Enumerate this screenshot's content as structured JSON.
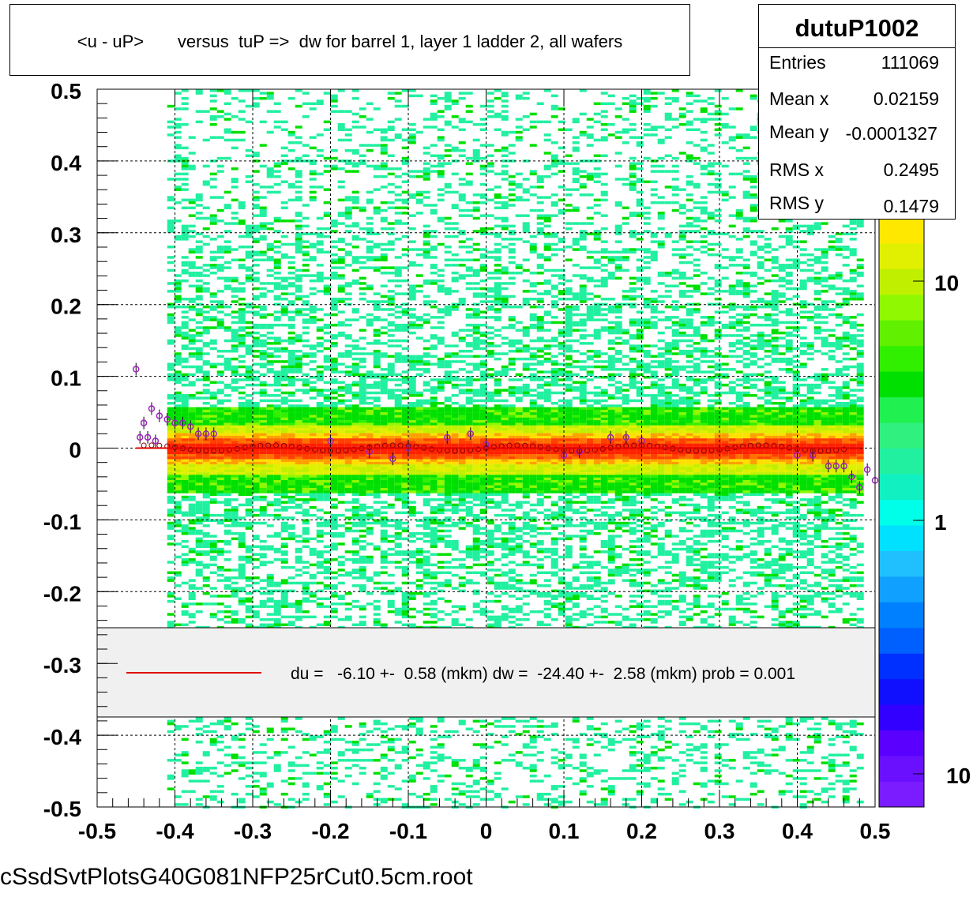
{
  "title": "<u - uP>       versus  tuP =>  dw for barrel 1, layer 1 ladder 2, all wafers",
  "stats": {
    "name": "dutuP1002",
    "rows": [
      {
        "label": "Entries",
        "value": "111069"
      },
      {
        "label": "Mean x",
        "value": "0.02159"
      },
      {
        "label": "Mean y",
        "value": "-0.0001327"
      },
      {
        "label": "RMS x",
        "value": "0.2495"
      },
      {
        "label": "RMS y",
        "value": "0.1479"
      }
    ]
  },
  "legend": {
    "text": "du =   -6.10 +-  0.58 (mkm) dw =  -24.40 +-  2.58 (mkm) prob = 0.001",
    "line_color": "#e00000"
  },
  "footer": "cSsdSvtPlotsG40G081NFP25rCut0.5cm.root",
  "colors": {
    "low": "#20f0a0",
    "mid": "#00e000",
    "high": "#ffe000",
    "peak": "#ff2000",
    "profile_marker": "#a020c0",
    "fit_line": "#e00000",
    "legend_bg": "#f0f0f0"
  },
  "palette": [
    "#7a1cff",
    "#6a10ff",
    "#5a00ff",
    "#3200ff",
    "#1010ff",
    "#0030ff",
    "#0060ff",
    "#0080ff",
    "#10a0ff",
    "#20c0ff",
    "#00e0ff",
    "#00ffe8",
    "#10f0c0",
    "#20f0a0",
    "#30f080",
    "#20f050",
    "#00e000",
    "#30f000",
    "#60f000",
    "#90f800",
    "#c0f000",
    "#e0f000",
    "#ffe800",
    "#ffc000",
    "#ffa000",
    "#ff7000",
    "#ff4000",
    "#ff2000"
  ],
  "colz_labels": [
    "10",
    "1",
    "10"
  ],
  "chart_data": {
    "type": "heatmap",
    "title": "<u - uP>       versus  tuP =>  dw for barrel 1, layer 1 ladder 2, all wafers",
    "xlim": [
      -0.5,
      0.5
    ],
    "ylim": [
      -0.5,
      0.5
    ],
    "x_ticks": [
      "-0.5",
      "-0.4",
      "-0.3",
      "-0.2",
      "-0.1",
      "0",
      "0.1",
      "0.2",
      "0.3",
      "0.4",
      "0.5"
    ],
    "y_ticks": [
      "0.5",
      "0.4",
      "0.3",
      "0.2",
      "0.1",
      "0",
      "-0.1",
      "-0.2",
      "-0.3",
      "-0.4",
      "-0.5"
    ],
    "grid": true,
    "heatmap_x_range": [
      -0.41,
      0.48
    ],
    "band_center_y": 0.0,
    "profile": {
      "x": [
        -0.45,
        -0.445,
        -0.44,
        -0.435,
        -0.43,
        -0.425,
        -0.42,
        -0.41,
        -0.4,
        -0.39,
        -0.38,
        -0.37,
        -0.36,
        -0.35,
        -0.2,
        -0.15,
        -0.12,
        -0.1,
        -0.05,
        -0.02,
        0.0,
        0.1,
        0.12,
        0.16,
        0.18,
        0.2,
        0.4,
        0.42,
        0.44,
        0.45,
        0.46,
        0.47,
        0.48,
        0.49,
        0.5
      ],
      "y": [
        0.11,
        0.015,
        0.035,
        0.015,
        0.055,
        0.01,
        0.045,
        0.04,
        0.035,
        0.035,
        0.03,
        0.02,
        0.02,
        0.02,
        0.01,
        -0.005,
        -0.015,
        0.0,
        0.015,
        0.02,
        0.005,
        -0.01,
        -0.005,
        0.015,
        0.015,
        0.01,
        -0.01,
        -0.01,
        -0.025,
        -0.025,
        -0.025,
        -0.04,
        -0.055,
        -0.03,
        -0.045
      ]
    },
    "fit_line": {
      "x": [
        -0.45,
        0.48
      ],
      "y": [
        0.0,
        0.0
      ]
    },
    "colz_scale": {
      "type": "log"
    }
  }
}
